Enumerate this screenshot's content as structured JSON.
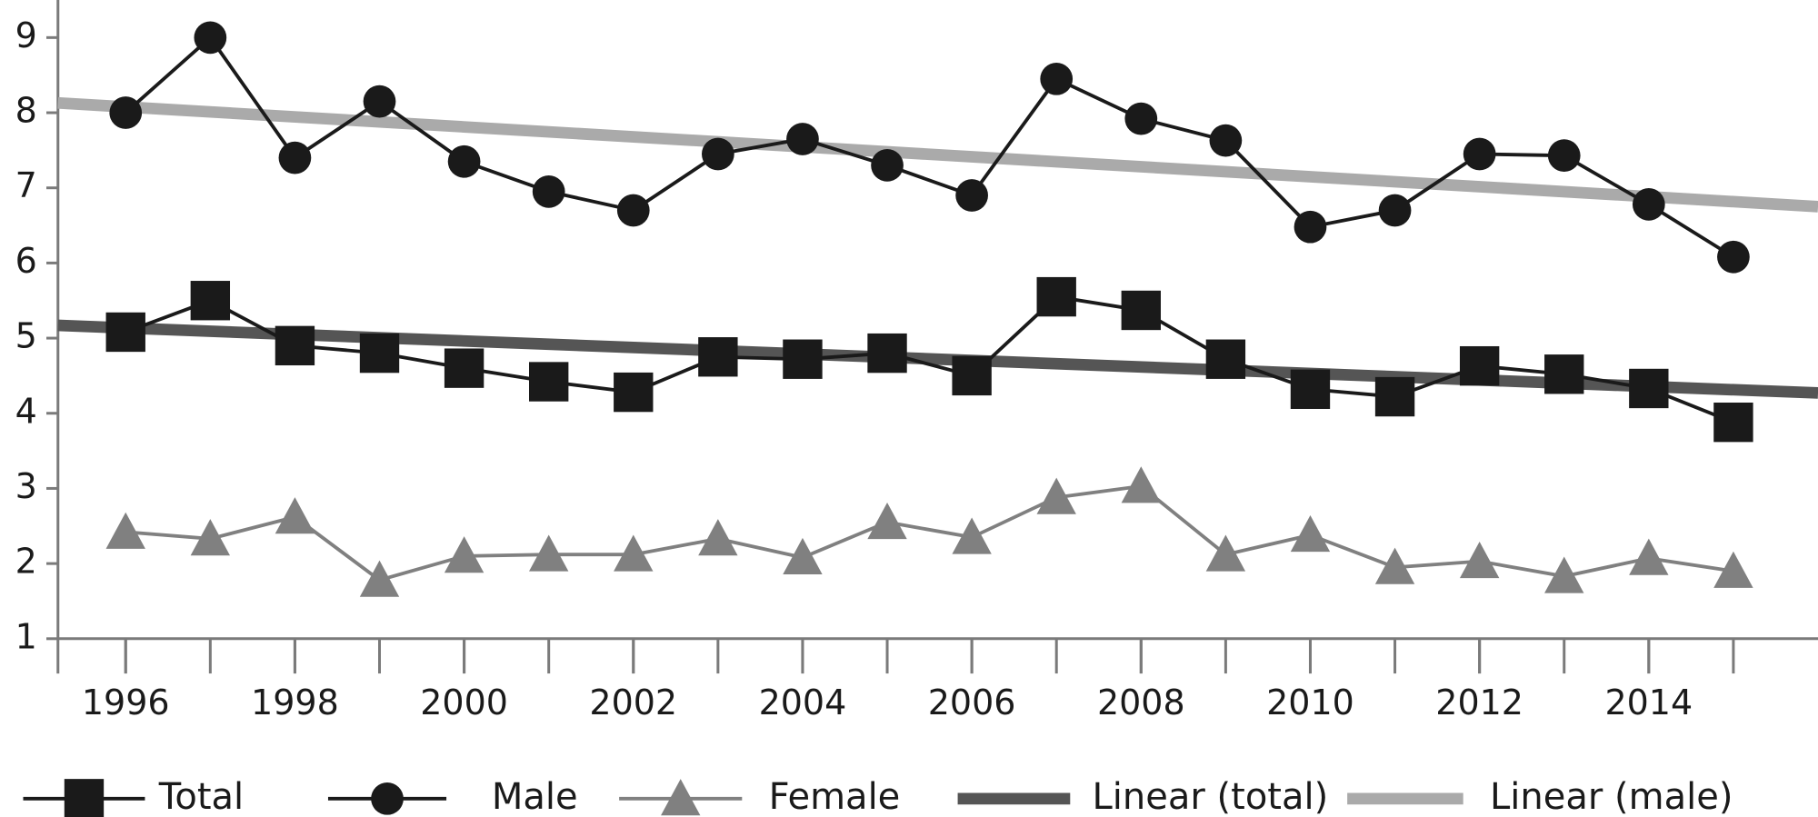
{
  "chart_data": {
    "type": "line",
    "x": [
      1996,
      1997,
      1998,
      1999,
      2000,
      2001,
      2002,
      2003,
      2004,
      2005,
      2006,
      2007,
      2008,
      2009,
      2010,
      2011,
      2012,
      2013,
      2014,
      2015
    ],
    "xlim": [
      1995.2,
      2016
    ],
    "xticks": [
      1996,
      1998,
      2000,
      2002,
      2004,
      2006,
      2008,
      2010,
      2012,
      2014
    ],
    "ylim": [
      1,
      9.5
    ],
    "yticks": [
      1,
      2,
      3,
      4,
      5,
      6,
      7,
      8,
      9
    ],
    "grid": false,
    "legend": "bottom",
    "series": [
      {
        "name": "Total",
        "color": "#1a1a1a",
        "marker": "square",
        "values": [
          5.08,
          5.5,
          4.9,
          4.8,
          4.6,
          4.42,
          4.28,
          4.75,
          4.72,
          4.8,
          4.5,
          5.55,
          5.37,
          4.72,
          4.32,
          4.22,
          4.63,
          4.52,
          4.33,
          3.88
        ]
      },
      {
        "name": "Male",
        "color": "#1a1a1a",
        "marker": "circle",
        "values": [
          8.0,
          9.0,
          7.4,
          8.15,
          7.35,
          6.95,
          6.7,
          7.45,
          7.65,
          7.3,
          6.9,
          8.45,
          7.92,
          7.63,
          6.48,
          6.7,
          7.45,
          7.43,
          6.78,
          6.08
        ]
      },
      {
        "name": "Female",
        "color": "#808080",
        "marker": "triangle",
        "values": [
          2.42,
          2.33,
          2.62,
          1.78,
          2.1,
          2.12,
          2.12,
          2.33,
          2.08,
          2.55,
          2.35,
          2.88,
          3.03,
          2.12,
          2.38,
          1.95,
          2.03,
          1.83,
          2.07,
          1.9
        ]
      },
      {
        "name": "Linear (total)",
        "color": "#555555",
        "marker": "none",
        "x": [
          1995.2,
          2016
        ],
        "values": [
          5.17,
          4.27
        ]
      },
      {
        "name": "Linear (male)",
        "color": "#aaaaaa",
        "marker": "none",
        "x": [
          1995.2,
          2016
        ],
        "values": [
          8.13,
          6.75
        ]
      }
    ]
  }
}
